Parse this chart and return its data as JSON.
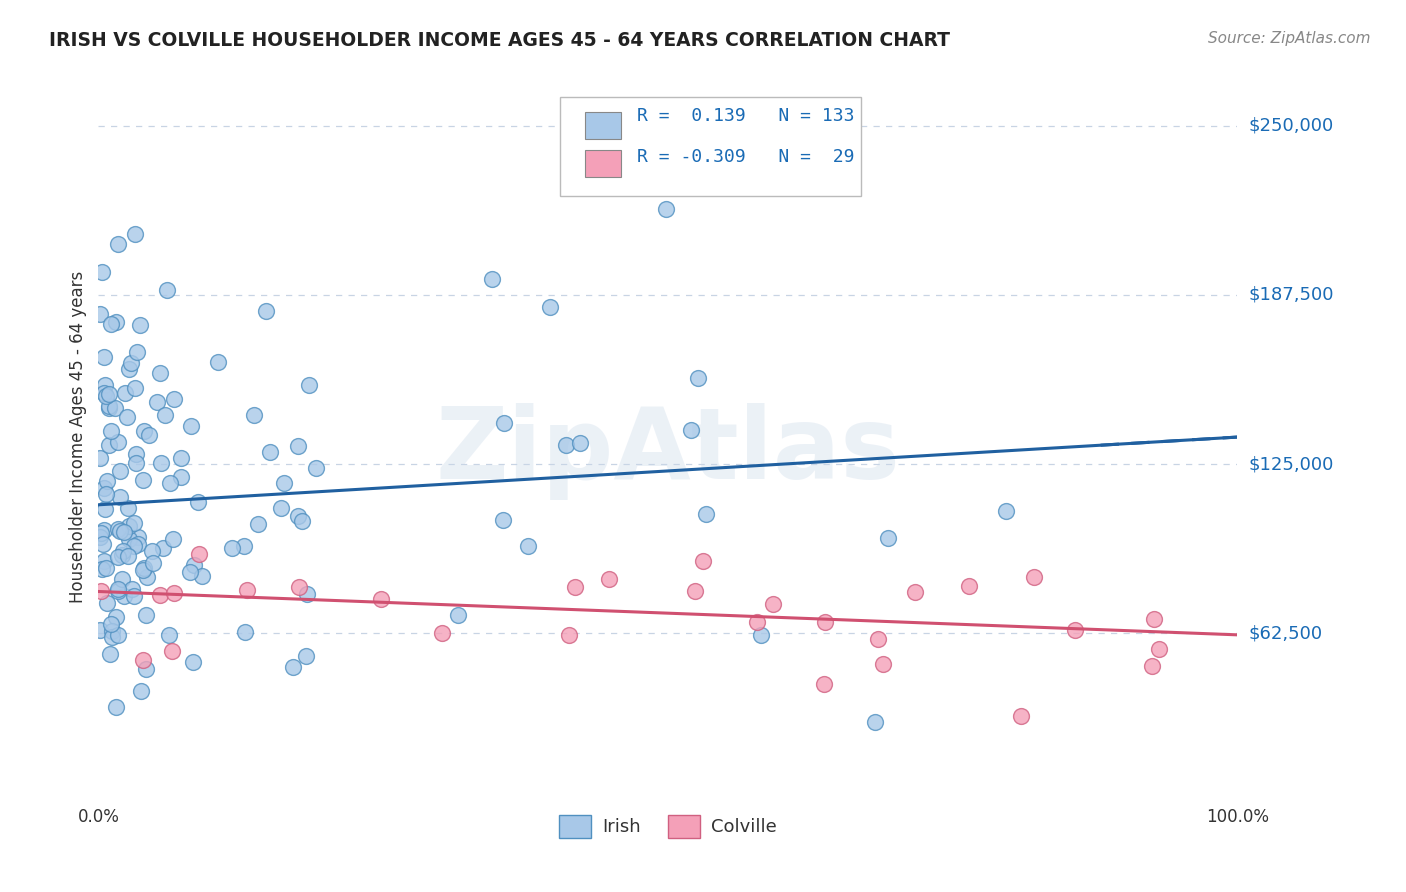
{
  "title": "IRISH VS COLVILLE HOUSEHOLDER INCOME AGES 45 - 64 YEARS CORRELATION CHART",
  "source": "Source: ZipAtlas.com",
  "ylabel": "Householder Income Ages 45 - 64 years",
  "xlim": [
    0.0,
    1.0
  ],
  "ylim": [
    0,
    270000
  ],
  "yticks": [
    62500,
    125000,
    187500,
    250000
  ],
  "ytick_labels": [
    "$62,500",
    "$125,000",
    "$187,500",
    "$250,000"
  ],
  "irish_R": 0.139,
  "irish_N": 133,
  "colville_R": -0.309,
  "colville_N": 29,
  "irish_color": "#a8c8e8",
  "colville_color": "#f4a0b8",
  "irish_edge_color": "#5090c0",
  "colville_edge_color": "#d06080",
  "irish_line_color": "#2060a0",
  "colville_line_color": "#d05070",
  "legend_text_color": "#1a6bb5",
  "background_color": "#ffffff",
  "grid_color": "#c8d4e4",
  "watermark": "ZipAtlas",
  "title_color": "#222222",
  "source_color": "#888888",
  "axis_color": "#333333"
}
